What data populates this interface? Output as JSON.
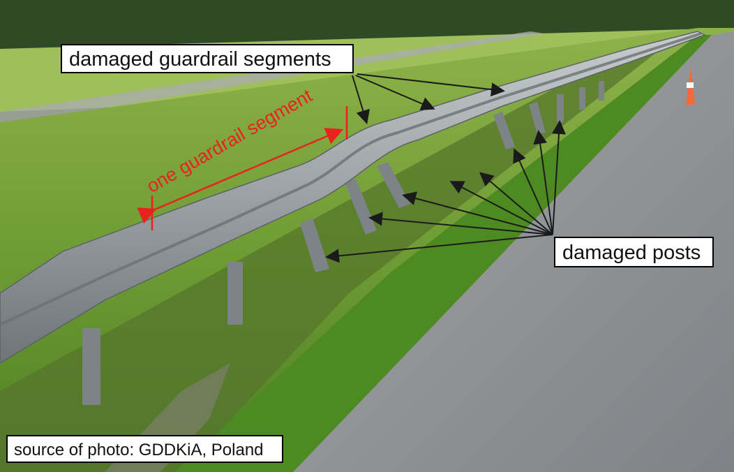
{
  "annotations": {
    "guardrail_label": "damaged guardrail segments",
    "posts_label": "damaged posts",
    "segment_label": "one guardrail segment",
    "source_label": "source of photo: GDDKiA, Poland"
  },
  "colors": {
    "annotation_arrow": "#1a1a1a",
    "segment_arrow": "#e8231e",
    "grass": "#5f8f2e",
    "road": "#8e9094",
    "guardrail": "#9ea3a6"
  }
}
